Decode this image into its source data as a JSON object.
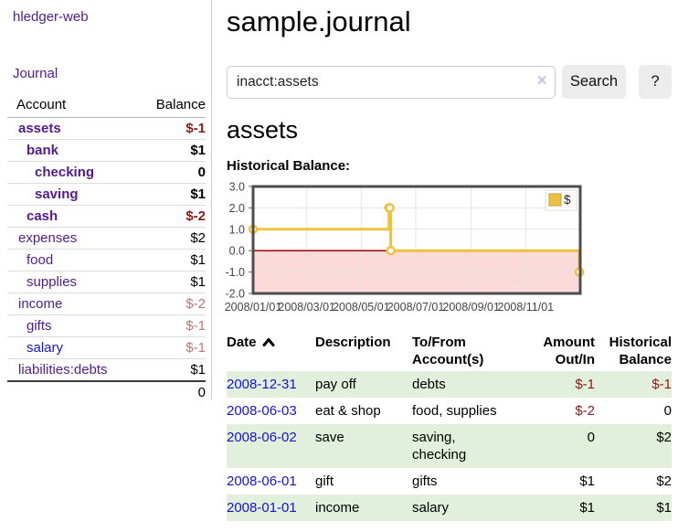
{
  "app": {
    "brand": "hledger-web",
    "nav": {
      "journal": "Journal"
    }
  },
  "sidebar": {
    "account_col": "Account",
    "balance_col": "Balance",
    "accounts": [
      {
        "name": "assets",
        "indent": 0,
        "bold": true,
        "balance": "$-1",
        "balance_class": "neg",
        "link_blue": false
      },
      {
        "name": "bank",
        "indent": 1,
        "bold": true,
        "balance": "$1",
        "balance_class": "",
        "link_blue": false
      },
      {
        "name": "checking",
        "indent": 2,
        "bold": true,
        "balance": "0",
        "balance_class": "",
        "link_blue": false
      },
      {
        "name": "saving",
        "indent": 2,
        "bold": true,
        "balance": "$1",
        "balance_class": "",
        "link_blue": false
      },
      {
        "name": "cash",
        "indent": 1,
        "bold": true,
        "balance": "$-2",
        "balance_class": "neg",
        "link_blue": false
      },
      {
        "name": "expenses",
        "indent": 0,
        "bold": false,
        "balance": "$2",
        "balance_class": "",
        "link_blue": false
      },
      {
        "name": "food",
        "indent": 1,
        "bold": false,
        "balance": "$1",
        "balance_class": "",
        "link_blue": false
      },
      {
        "name": "supplies",
        "indent": 1,
        "bold": false,
        "balance": "$1",
        "balance_class": "",
        "link_blue": false
      },
      {
        "name": "income",
        "indent": 0,
        "bold": false,
        "balance": "$-2",
        "balance_class": "neg-muted",
        "link_blue": false
      },
      {
        "name": "gifts",
        "indent": 1,
        "bold": false,
        "balance": "$-1",
        "balance_class": "neg-muted",
        "link_blue": false
      },
      {
        "name": "salary",
        "indent": 1,
        "bold": false,
        "balance": "$-1",
        "balance_class": "neg-muted",
        "link_blue": true
      },
      {
        "name": "liabilities:debts",
        "indent": 0,
        "bold": false,
        "balance": "$1",
        "balance_class": "",
        "link_blue": false
      }
    ],
    "total": "0"
  },
  "header": {
    "title": "sample.journal"
  },
  "search": {
    "value": "inacct:assets",
    "clear": "×",
    "button_label": "Search",
    "help_label": "?"
  },
  "account_view": {
    "title": "assets",
    "chart_heading": "Historical Balance:"
  },
  "chart_data": {
    "type": "line",
    "step": true,
    "markers": true,
    "title": "Historical Balance",
    "x_range": [
      "2008-01-01",
      "2009-01-01"
    ],
    "ylim": [
      -2,
      3
    ],
    "series": [
      {
        "name": "$",
        "color": "#edc240",
        "points": [
          {
            "x": "2008-01-01",
            "y": 1
          },
          {
            "x": "2008-06-01",
            "y": 2
          },
          {
            "x": "2008-06-02",
            "y": 2
          },
          {
            "x": "2008-06-03",
            "y": 0
          },
          {
            "x": "2008-12-31",
            "y": -1
          }
        ]
      }
    ],
    "y_ticks": [
      {
        "v": 3,
        "label": "3.0"
      },
      {
        "v": 2,
        "label": "2.0"
      },
      {
        "v": 1,
        "label": "1.0"
      },
      {
        "v": 0,
        "label": "0.0"
      },
      {
        "v": -1,
        "label": "-1.0"
      },
      {
        "v": -2,
        "label": "-2.0"
      }
    ],
    "x_ticks": [
      {
        "x": "2008-01-01",
        "label": "2008/01/01"
      },
      {
        "x": "2008-03-01",
        "label": "2008/03/01"
      },
      {
        "x": "2008-05-01",
        "label": "2008/05/01"
      },
      {
        "x": "2008-07-01",
        "label": "2008/07/01"
      },
      {
        "x": "2008-09-01",
        "label": "2008/09/01"
      },
      {
        "x": "2008-11-01",
        "label": "2008/11/01"
      }
    ],
    "legend": {
      "label": "$",
      "position": "top-right"
    },
    "grid": true,
    "colors": {
      "series": "#edc240",
      "marker_fill": "#ffffff",
      "negative_region": "#fcdada",
      "zero_line": "#a40000",
      "grid": "#e4e4e4",
      "border": "#4d4d4d",
      "legend_border": "#dcdcdc",
      "swatch_border": "#bfa02f"
    }
  },
  "register": {
    "headers": {
      "date": "Date",
      "sort": "asc",
      "description": "Description",
      "accounts": "To/From Account(s)",
      "amount": "Amount Out/In",
      "balance": "Historical Balance"
    },
    "rows": [
      {
        "date": "2008-12-31",
        "description": "pay off",
        "accounts": "debts",
        "amount": "$-1",
        "amount_class": "neg",
        "balance": "$-1",
        "balance_class": "neg"
      },
      {
        "date": "2008-06-03",
        "description": "eat & shop",
        "accounts": "food, supplies",
        "amount": "$-2",
        "amount_class": "neg",
        "balance": "0",
        "balance_class": ""
      },
      {
        "date": "2008-06-02",
        "description": "save",
        "accounts": "saving, checking",
        "amount": "0",
        "amount_class": "",
        "balance": "$2",
        "balance_class": ""
      },
      {
        "date": "2008-06-01",
        "description": "gift",
        "accounts": "gifts",
        "amount": "$1",
        "amount_class": "",
        "balance": "$2",
        "balance_class": ""
      },
      {
        "date": "2008-01-01",
        "description": "income",
        "accounts": "salary",
        "amount": "$1",
        "amount_class": "",
        "balance": "$1",
        "balance_class": ""
      }
    ]
  }
}
